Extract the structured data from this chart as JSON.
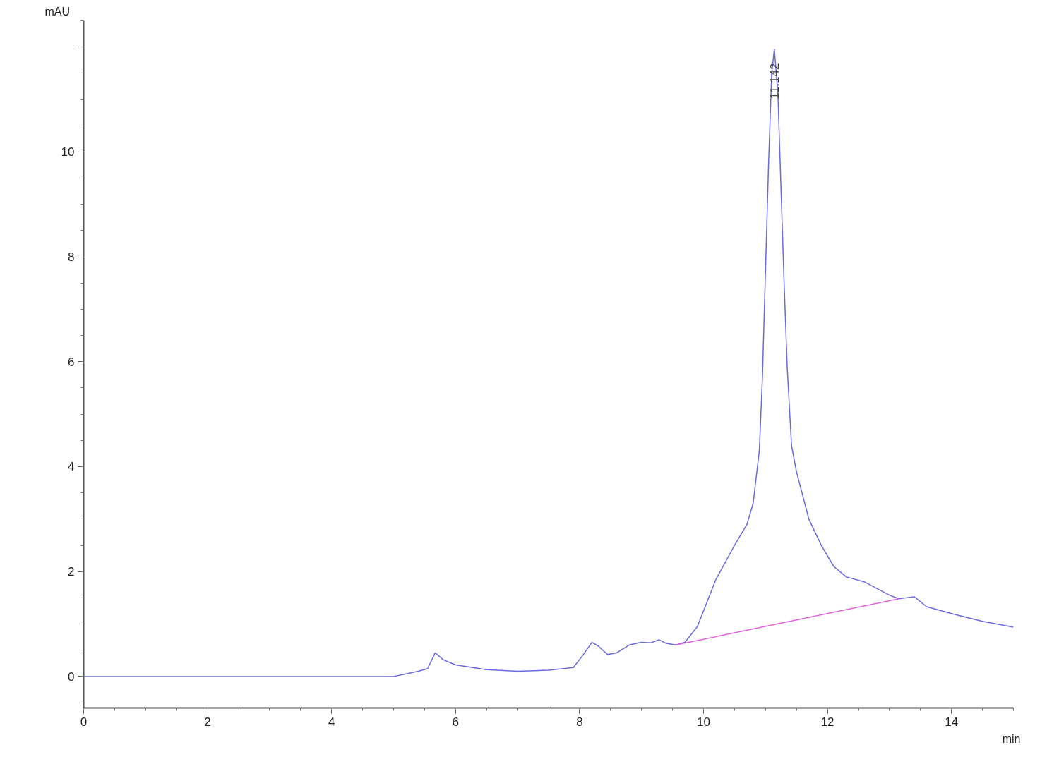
{
  "chart_data": {
    "type": "line",
    "xlabel": "min",
    "ylabel": "mAU",
    "xlim": [
      0,
      15
    ],
    "ylim": [
      -0.6,
      12.5
    ],
    "xticks": [
      0,
      2,
      4,
      6,
      8,
      10,
      12,
      14
    ],
    "yticks": [
      0,
      2,
      4,
      6,
      8,
      10,
      {
        "value": 12,
        "label": null
      }
    ],
    "grid": false,
    "marker": "none",
    "line_style": "solid",
    "series": [
      {
        "color": "#6a6ae0",
        "x": [
          0,
          1,
          2,
          3,
          4,
          5.0,
          5.2,
          5.4,
          5.55,
          5.67,
          5.8,
          6.0,
          6.5,
          7.0,
          7.5,
          7.9,
          8.05,
          8.2,
          8.3,
          8.45,
          8.6,
          8.8,
          9.0,
          9.15,
          9.28,
          9.4,
          9.55,
          9.7,
          9.9,
          10.2,
          10.5,
          10.7,
          10.8,
          10.9,
          10.95,
          11.0,
          11.05,
          11.1,
          11.142,
          11.2,
          11.25,
          11.3,
          11.35,
          11.42,
          11.5,
          11.7,
          11.9,
          12.1,
          12.3,
          12.6,
          13.0,
          13.15,
          13.4,
          13.6,
          14.0,
          14.5,
          15.0
        ],
        "values": [
          0,
          0,
          0,
          0,
          0,
          0.0,
          0.05,
          0.1,
          0.15,
          0.45,
          0.32,
          0.22,
          0.13,
          0.1,
          0.12,
          0.17,
          0.4,
          0.65,
          0.58,
          0.42,
          0.45,
          0.6,
          0.65,
          0.64,
          0.7,
          0.63,
          0.6,
          0.65,
          0.95,
          1.85,
          2.5,
          2.9,
          3.3,
          4.3,
          5.7,
          7.75,
          9.8,
          11.5,
          11.96,
          11.1,
          9.3,
          7.5,
          5.9,
          4.4,
          3.9,
          3.0,
          2.5,
          2.1,
          1.9,
          1.8,
          1.55,
          1.48,
          1.52,
          1.33,
          1.2,
          1.05,
          0.94
        ]
      },
      {
        "color": "#e060e0",
        "x": [
          9.55,
          13.15
        ],
        "values": [
          0.6,
          1.48
        ]
      }
    ],
    "annotations": [
      {
        "text": "11.142",
        "x": 11.142,
        "y": 11.96
      }
    ]
  }
}
